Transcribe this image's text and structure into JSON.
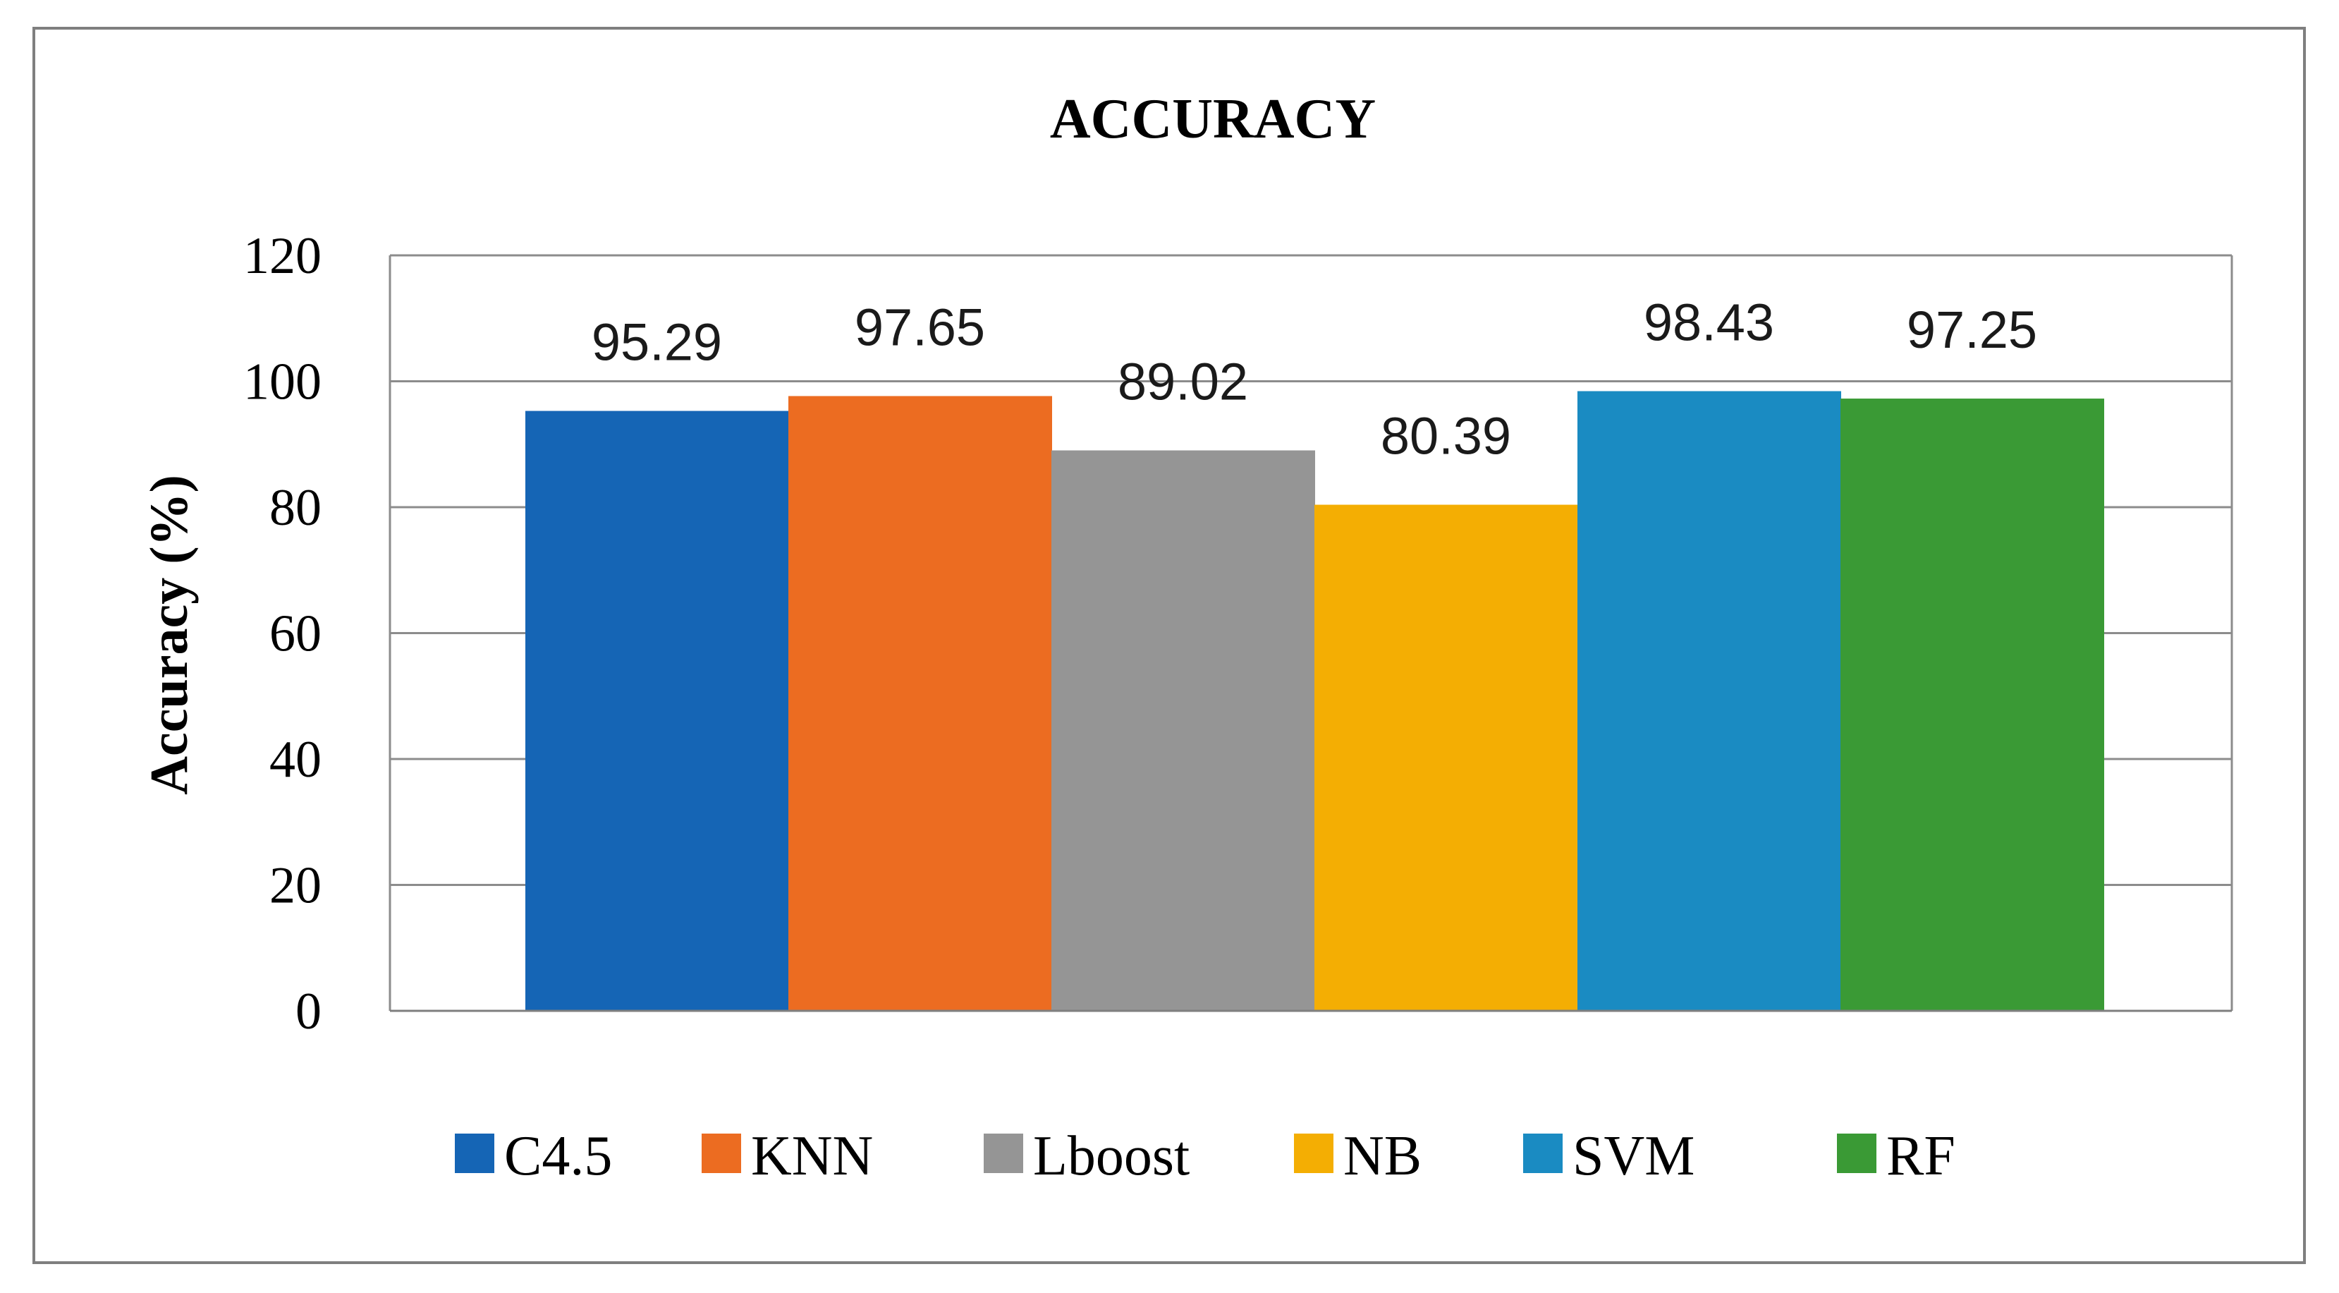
{
  "chart_data": {
    "type": "bar",
    "title": "ACCURACY",
    "xlabel": "",
    "ylabel": "Accuracy (%)",
    "ylim": [
      0,
      120
    ],
    "yticks": [
      0,
      20,
      40,
      60,
      80,
      100,
      120
    ],
    "grid": true,
    "legend_position": "bottom",
    "categories": [
      "C4.5",
      "KNN",
      "Lboost",
      "NB",
      "SVM",
      "RF"
    ],
    "values": [
      95.29,
      97.65,
      89.02,
      80.39,
      98.43,
      97.25
    ],
    "value_labels": [
      "95.29",
      "97.65",
      "89.02",
      "80.39",
      "98.43",
      "97.25"
    ],
    "colors": [
      "#1565b5",
      "#ec6c21",
      "#959595",
      "#f4ae03",
      "#1a8bc2",
      "#3a9a35"
    ]
  }
}
